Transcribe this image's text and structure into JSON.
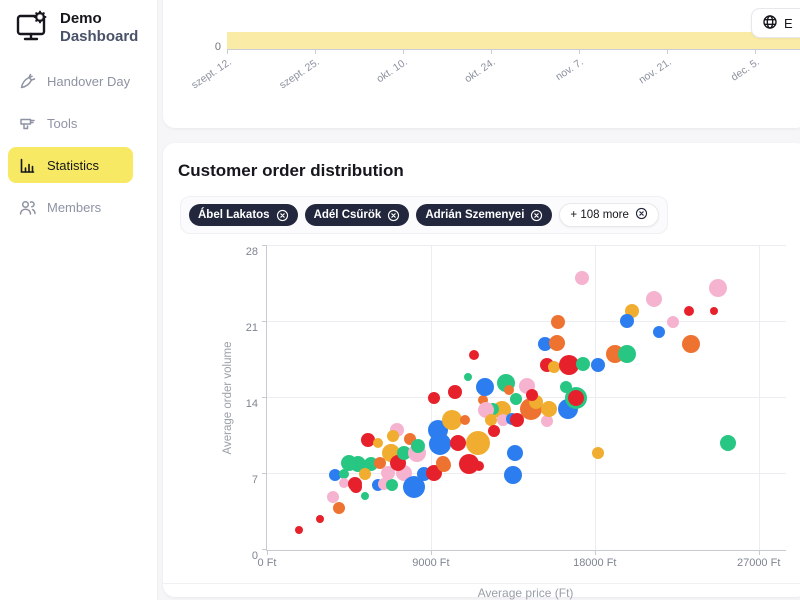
{
  "app": {
    "brand_line1": "Demo",
    "brand_line2": "Dashboard"
  },
  "topbar": {
    "language_button_label": "E",
    "language_button_icon": "globe-icon"
  },
  "sidebar": {
    "active_highlight_color": "#f7e964",
    "items": [
      {
        "label": "Handover Day",
        "icon": "carrot-icon",
        "active": false
      },
      {
        "label": "Tools",
        "icon": "drill-icon",
        "active": false
      },
      {
        "label": "Statistics",
        "icon": "bar-chart-icon",
        "active": true
      },
      {
        "label": "Members",
        "icon": "members-icon",
        "active": false
      }
    ]
  },
  "stats_card": {
    "title": "Customer order distribution",
    "filter_chips": [
      {
        "label": "Ábel Lakatos",
        "close_icon": "close-circle-icon"
      },
      {
        "label": "Adél Csűrök",
        "close_icon": "close-circle-icon"
      },
      {
        "label": "Adrián Szemenyei",
        "close_icon": "close-circle-icon"
      }
    ],
    "more_chip": {
      "label": "+ 108 more",
      "close_icon": "close-circle-icon"
    }
  },
  "chart_data": [
    {
      "id": "timeline-strip",
      "type": "bar",
      "title": "",
      "categories": [
        "szept. 12.",
        "szept. 25.",
        "okt. 10.",
        "okt. 24.",
        "nov. 7.",
        "nov. 21.",
        "dec. 5."
      ],
      "y_axis_visible_ticks": [
        "0"
      ],
      "band_color": "#faeca6"
    },
    {
      "id": "customer-order-distribution",
      "type": "scatter",
      "title": "Customer order distribution",
      "xlabel": "Average price (Ft)",
      "ylabel": "Average order volume",
      "xlim": [
        0,
        28500
      ],
      "ylim": [
        0,
        28
      ],
      "grid": true,
      "x_ticks": [
        {
          "value": 0,
          "label": "0 Ft"
        },
        {
          "value": 9000,
          "label": "9000 Ft"
        },
        {
          "value": 18000,
          "label": "18000 Ft"
        },
        {
          "value": 27000,
          "label": "27000 Ft"
        }
      ],
      "y_ticks": [
        0,
        7,
        14,
        21,
        28
      ],
      "palette": {
        "r": "#e7212b",
        "o": "#ee7331",
        "y": "#f0ad2f",
        "g": "#27c783",
        "b": "#2c7ef0",
        "p": "#f5b3cf"
      },
      "points": [
        [
          1750,
          1.8,
          4,
          "r"
        ],
        [
          2900,
          2.9,
          4,
          "r"
        ],
        [
          3950,
          3.9,
          6,
          "o"
        ],
        [
          3600,
          4.9,
          6,
          "p"
        ],
        [
          4900,
          5.8,
          6,
          "r"
        ],
        [
          5400,
          5.0,
          4,
          "g"
        ],
        [
          3750,
          6.9,
          6,
          "b"
        ],
        [
          4250,
          7.0,
          5,
          "g"
        ],
        [
          4250,
          6.2,
          5,
          "p"
        ],
        [
          4850,
          6.1,
          7,
          "r"
        ],
        [
          4500,
          8.0,
          8,
          "g"
        ],
        [
          5000,
          7.9,
          8,
          "g"
        ],
        [
          5700,
          7.9,
          7,
          "g"
        ],
        [
          6200,
          8.0,
          6,
          "o"
        ],
        [
          5400,
          7.0,
          6,
          "y"
        ],
        [
          6100,
          6.0,
          6,
          "b"
        ],
        [
          6400,
          6.1,
          6,
          "p"
        ],
        [
          6850,
          6.0,
          6,
          "g"
        ],
        [
          6650,
          7.1,
          7,
          "p"
        ],
        [
          7550,
          7.1,
          8,
          "p"
        ],
        [
          6800,
          8.9,
          9,
          "y"
        ],
        [
          7200,
          8.0,
          8,
          "r"
        ],
        [
          7550,
          8.9,
          7,
          "g"
        ],
        [
          8250,
          8.9,
          9,
          "p"
        ],
        [
          5550,
          10.1,
          7,
          "r"
        ],
        [
          6100,
          9.9,
          5,
          "y"
        ],
        [
          7150,
          11.1,
          7,
          "p"
        ],
        [
          6900,
          10.5,
          6,
          "y"
        ],
        [
          7850,
          10.2,
          6,
          "o"
        ],
        [
          8300,
          9.6,
          7,
          "g"
        ],
        [
          8600,
          7.0,
          7,
          "b"
        ],
        [
          9150,
          7.1,
          8,
          "r"
        ],
        [
          9650,
          8.0,
          7,
          "o"
        ],
        [
          9400,
          11.1,
          10,
          "b"
        ],
        [
          9500,
          9.8,
          11,
          "b"
        ],
        [
          8050,
          5.8,
          11,
          "b"
        ],
        [
          9150,
          14.0,
          6,
          "r"
        ],
        [
          10350,
          14.6,
          7,
          "r"
        ],
        [
          11850,
          13.8,
          5,
          "o"
        ],
        [
          11950,
          15.0,
          9,
          "b"
        ],
        [
          13100,
          15.4,
          9,
          "g"
        ],
        [
          13300,
          14.7,
          5,
          "o"
        ],
        [
          11350,
          18.0,
          5,
          "r"
        ],
        [
          11050,
          15.9,
          4,
          "g"
        ],
        [
          13700,
          13.9,
          6,
          "g"
        ],
        [
          12900,
          12.9,
          9,
          "y"
        ],
        [
          12400,
          13.0,
          6,
          "g"
        ],
        [
          12000,
          12.9,
          8,
          "p"
        ],
        [
          10150,
          12.0,
          10,
          "y"
        ],
        [
          10900,
          12.0,
          5,
          "o"
        ],
        [
          12300,
          12.0,
          6,
          "y"
        ],
        [
          12950,
          12.0,
          6,
          "p"
        ],
        [
          13450,
          12.1,
          6,
          "b"
        ],
        [
          13750,
          12.0,
          7,
          "r"
        ],
        [
          15350,
          11.9,
          6,
          "p"
        ],
        [
          12450,
          11.0,
          6,
          "r"
        ],
        [
          10500,
          9.9,
          8,
          "r"
        ],
        [
          11600,
          9.9,
          12,
          "y"
        ],
        [
          11100,
          7.9,
          10,
          "r"
        ],
        [
          9700,
          7.8,
          7,
          "o"
        ],
        [
          11650,
          7.7,
          5,
          "r"
        ],
        [
          13600,
          8.9,
          8,
          "b"
        ],
        [
          13500,
          6.9,
          9,
          "b"
        ],
        [
          14500,
          13.0,
          11,
          "o"
        ],
        [
          15500,
          13.0,
          8,
          "y"
        ],
        [
          16550,
          13.0,
          10,
          "b"
        ],
        [
          16950,
          14.0,
          11,
          "g"
        ],
        [
          16950,
          14.0,
          8,
          "r"
        ],
        [
          14750,
          13.6,
          7,
          "y"
        ],
        [
          14250,
          15.1,
          8,
          "p"
        ],
        [
          14550,
          14.3,
          6,
          "r"
        ],
        [
          16400,
          15.0,
          6,
          "g"
        ],
        [
          15350,
          17.0,
          7,
          "r"
        ],
        [
          15750,
          16.9,
          6,
          "y"
        ],
        [
          16600,
          17.0,
          10,
          "r"
        ],
        [
          17350,
          17.1,
          7,
          "g"
        ],
        [
          18200,
          17.0,
          7,
          "b"
        ],
        [
          19100,
          18.1,
          9,
          "o"
        ],
        [
          19750,
          18.1,
          9,
          "g"
        ],
        [
          15250,
          19.0,
          7,
          "b"
        ],
        [
          15950,
          19.1,
          8,
          "o"
        ],
        [
          16000,
          21.0,
          7,
          "o"
        ],
        [
          17300,
          25.1,
          7,
          "p"
        ],
        [
          20050,
          22.0,
          7,
          "y"
        ],
        [
          19750,
          21.1,
          7,
          "b"
        ],
        [
          21250,
          23.1,
          8,
          "p"
        ],
        [
          22300,
          21.0,
          6,
          "p"
        ],
        [
          21550,
          20.1,
          6,
          "b"
        ],
        [
          23200,
          22.0,
          5,
          "r"
        ],
        [
          24550,
          22.0,
          4,
          "r"
        ],
        [
          24750,
          24.1,
          9,
          "p"
        ],
        [
          23300,
          19.0,
          9,
          "o"
        ],
        [
          25300,
          9.9,
          8,
          "g"
        ],
        [
          18200,
          8.9,
          6,
          "y"
        ]
      ]
    }
  ]
}
